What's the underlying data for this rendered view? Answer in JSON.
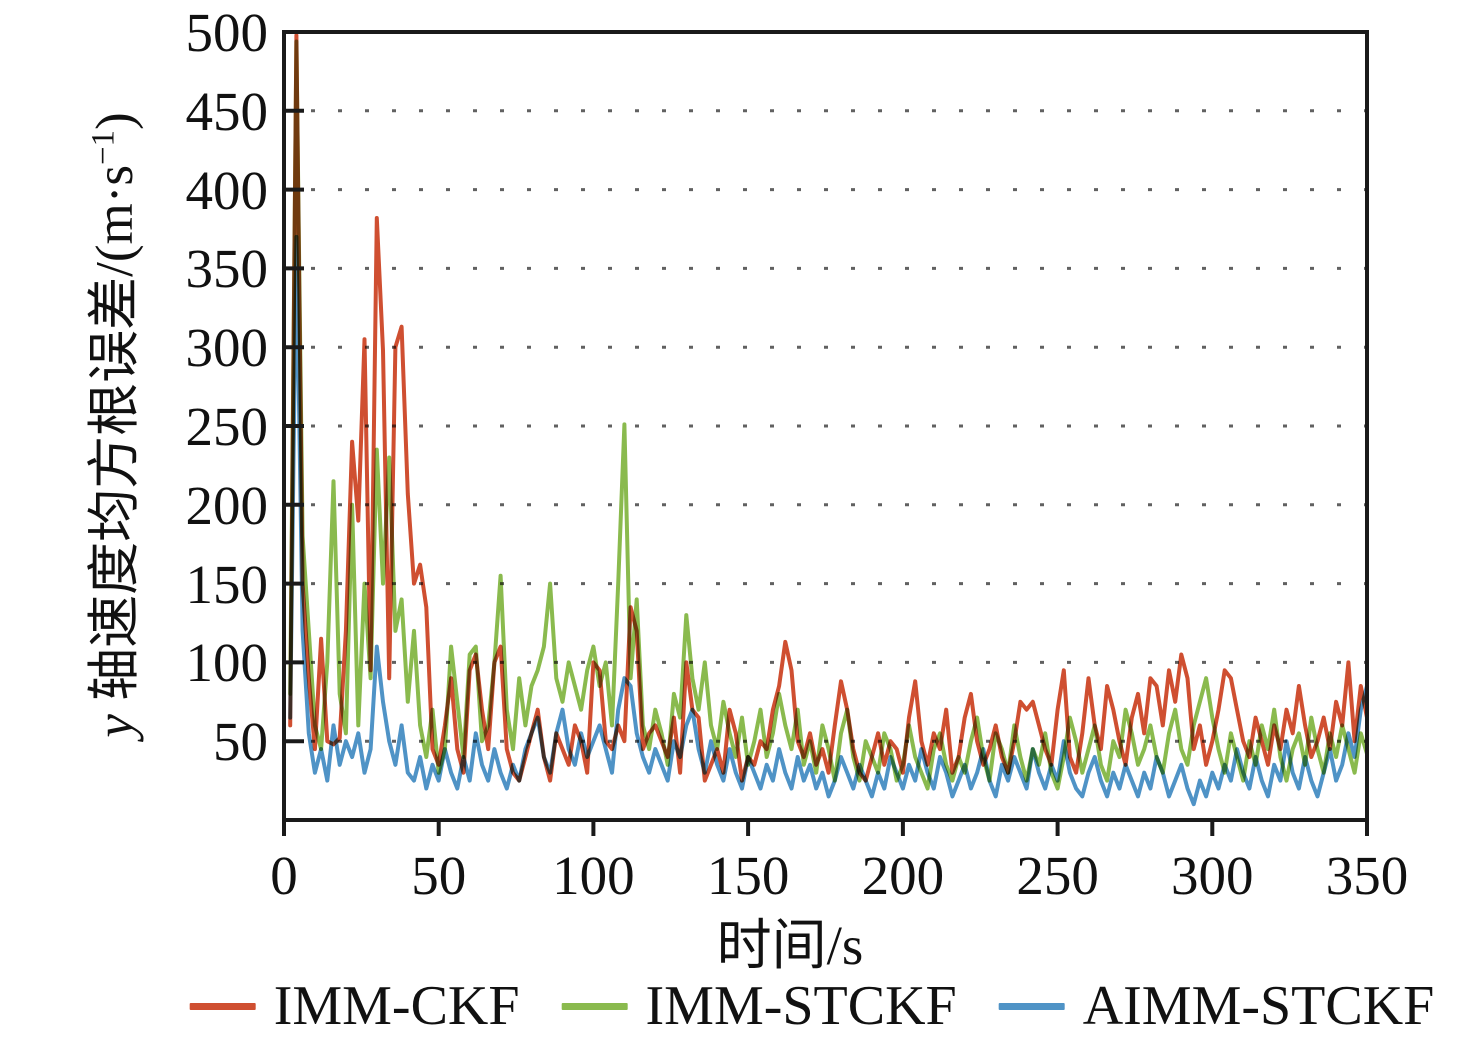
{
  "figure": {
    "background": "#ffffff"
  },
  "chart_data": {
    "type": "line",
    "title": "",
    "xlabel": "时间/s",
    "ylabel": "y 轴速度均方根误差/(m·s⁻¹)",
    "ylabel_parts": {
      "var": "y",
      "main": " 轴速度均方根误差/(m·s",
      "sup": "−1",
      "close": ")"
    },
    "xlim": [
      0,
      350
    ],
    "ylim": [
      0,
      500
    ],
    "x_ticks": [
      0,
      50,
      100,
      150,
      200,
      250,
      300,
      350
    ],
    "y_ticks": [
      50,
      100,
      150,
      200,
      250,
      300,
      350,
      400,
      450,
      500
    ],
    "grid": {
      "horizontal_step": 50,
      "style": "dotted",
      "color": "#3a3a3a",
      "drawn_over_data": true
    },
    "axis_color": "#1a1a1a",
    "x_start": 2,
    "x_step": 2,
    "legend": {
      "position": "bottom",
      "labels": [
        "IMM-CKF",
        "IMM-STCKF",
        "AIMM-STCKF"
      ]
    },
    "series": [
      {
        "name": "IMM-CKF",
        "color": "#cf4f31",
        "values": [
          60,
          498,
          150,
          90,
          45,
          115,
          50,
          48,
          52,
          120,
          240,
          190,
          305,
          95,
          382,
          298,
          90,
          300,
          313,
          207,
          150,
          162,
          135,
          45,
          35,
          60,
          90,
          45,
          30,
          95,
          105,
          70,
          45,
          100,
          110,
          45,
          30,
          25,
          40,
          55,
          70,
          40,
          25,
          55,
          45,
          35,
          60,
          50,
          30,
          100,
          95,
          50,
          45,
          60,
          50,
          135,
          120,
          45,
          55,
          60,
          50,
          40,
          65,
          30,
          100,
          70,
          65,
          25,
          35,
          45,
          30,
          70,
          55,
          25,
          40,
          35,
          50,
          45,
          70,
          85,
          113,
          95,
          50,
          40,
          55,
          35,
          45,
          30,
          60,
          88,
          70,
          45,
          30,
          25,
          40,
          55,
          35,
          50,
          45,
          30,
          65,
          88,
          50,
          35,
          55,
          45,
          70,
          30,
          40,
          65,
          80,
          50,
          35,
          45,
          60,
          40,
          30,
          50,
          75,
          70,
          75,
          60,
          45,
          35,
          70,
          95,
          40,
          30,
          55,
          90,
          60,
          45,
          85,
          70,
          50,
          35,
          65,
          80,
          55,
          90,
          85,
          60,
          95,
          75,
          105,
          90,
          45,
          60,
          35,
          50,
          70,
          95,
          90,
          70,
          50,
          40,
          65,
          50,
          35,
          60,
          45,
          70,
          55,
          85,
          60,
          40,
          50,
          65,
          45,
          75,
          60,
          100,
          50,
          85,
          65
        ]
      },
      {
        "name": "IMM-STCKF",
        "color": "#8aba4e",
        "values": [
          80,
          494,
          180,
          120,
          60,
          45,
          100,
          215,
          80,
          55,
          200,
          60,
          150,
          90,
          235,
          150,
          230,
          120,
          140,
          75,
          120,
          60,
          40,
          70,
          30,
          45,
          110,
          75,
          40,
          105,
          110,
          50,
          60,
          100,
          155,
          70,
          45,
          90,
          60,
          85,
          95,
          110,
          150,
          90,
          75,
          100,
          85,
          70,
          95,
          110,
          85,
          100,
          60,
          150,
          251,
          90,
          140,
          60,
          45,
          70,
          55,
          35,
          80,
          65,
          130,
          90,
          70,
          100,
          60,
          45,
          75,
          55,
          40,
          65,
          35,
          50,
          70,
          40,
          55,
          80,
          60,
          45,
          70,
          35,
          50,
          30,
          60,
          45,
          25,
          55,
          70,
          40,
          25,
          50,
          40,
          30,
          55,
          45,
          25,
          35,
          60,
          40,
          30,
          20,
          45,
          55,
          35,
          25,
          40,
          30,
          50,
          65,
          40,
          25,
          55,
          45,
          30,
          60,
          40,
          25,
          45,
          35,
          55,
          30,
          20,
          40,
          65,
          50,
          30,
          45,
          60,
          35,
          25,
          50,
          40,
          70,
          55,
          35,
          45,
          60,
          40,
          30,
          55,
          70,
          45,
          35,
          60,
          75,
          90,
          65,
          45,
          30,
          55,
          40,
          25,
          50,
          35,
          60,
          45,
          70,
          40,
          25,
          45,
          55,
          35,
          65,
          45,
          30,
          55,
          40,
          60,
          45,
          30,
          55,
          42
        ]
      },
      {
        "name": "AIMM-STCKF",
        "color": "#4f93c6",
        "values": [
          65,
          370,
          120,
          55,
          30,
          45,
          25,
          60,
          35,
          50,
          40,
          55,
          30,
          45,
          110,
          75,
          50,
          35,
          60,
          30,
          25,
          40,
          20,
          35,
          25,
          45,
          30,
          20,
          40,
          25,
          55,
          35,
          25,
          45,
          30,
          20,
          35,
          25,
          45,
          55,
          65,
          40,
          30,
          55,
          70,
          45,
          35,
          55,
          40,
          50,
          60,
          45,
          30,
          70,
          90,
          85,
          55,
          40,
          30,
          45,
          35,
          25,
          50,
          40,
          60,
          70,
          45,
          30,
          50,
          35,
          25,
          45,
          30,
          20,
          40,
          30,
          20,
          35,
          25,
          45,
          30,
          20,
          40,
          25,
          35,
          20,
          30,
          15,
          25,
          40,
          30,
          20,
          35,
          25,
          15,
          30,
          20,
          40,
          30,
          20,
          35,
          25,
          45,
          30,
          20,
          40,
          30,
          15,
          25,
          35,
          20,
          30,
          45,
          25,
          15,
          35,
          25,
          40,
          30,
          20,
          45,
          30,
          20,
          35,
          25,
          50,
          30,
          20,
          15,
          30,
          40,
          25,
          15,
          30,
          20,
          35,
          25,
          15,
          30,
          20,
          40,
          30,
          15,
          25,
          35,
          20,
          10,
          25,
          15,
          30,
          20,
          35,
          25,
          45,
          30,
          20,
          40,
          25,
          15,
          35,
          25,
          50,
          30,
          20,
          40,
          25,
          15,
          30,
          45,
          25,
          35,
          55,
          40,
          70,
          85
        ]
      }
    ]
  }
}
